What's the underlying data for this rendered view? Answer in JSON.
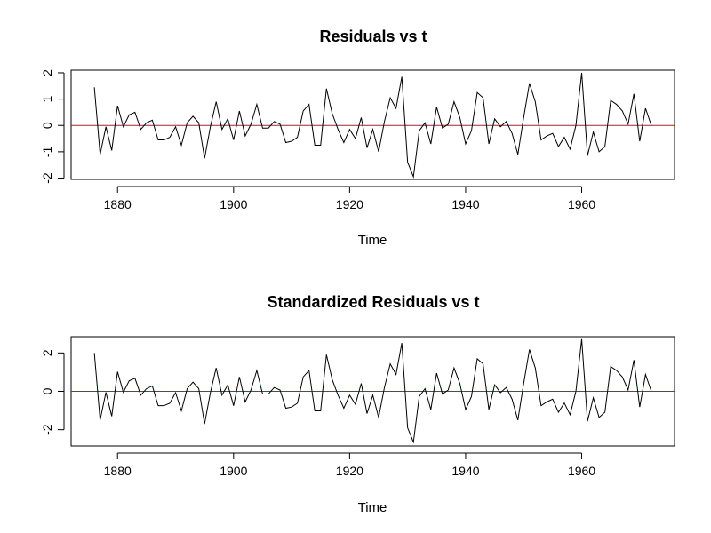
{
  "chart_data": [
    {
      "type": "line",
      "title": "Residuals vs t",
      "xlabel": "Time",
      "ylabel": "",
      "xlim": [
        1872,
        1976
      ],
      "ylim": [
        -2.05,
        2.1
      ],
      "x_ticks": [
        1880,
        1900,
        1920,
        1940,
        1960
      ],
      "y_ticks": [
        -2,
        -1,
        0,
        1,
        2
      ],
      "reference_line": {
        "y": 0,
        "color": "#ff0000"
      },
      "grid": false,
      "x_start": 1876,
      "series": [
        {
          "color": "#000000",
          "values": [
            1.45,
            -1.1,
            -0.05,
            -0.95,
            0.75,
            -0.05,
            0.4,
            0.5,
            -0.15,
            0.1,
            0.2,
            -0.55,
            -0.55,
            -0.45,
            -0.05,
            -0.75,
            0.1,
            0.35,
            0.1,
            -1.25,
            -0.05,
            0.9,
            -0.15,
            0.25,
            -0.55,
            0.55,
            -0.4,
            0.05,
            0.8,
            -0.1,
            -0.1,
            0.15,
            0.05,
            -0.65,
            -0.6,
            -0.45,
            0.55,
            0.8,
            -0.75,
            -0.75,
            1.4,
            0.45,
            -0.15,
            -0.65,
            -0.15,
            -0.5,
            0.3,
            -0.85,
            -0.15,
            -1.0,
            0.15,
            1.05,
            0.65,
            1.85,
            -1.4,
            -1.95,
            -0.2,
            0.1,
            -0.7,
            0.7,
            -0.1,
            0.05,
            0.9,
            0.3,
            -0.7,
            -0.2,
            1.25,
            1.05,
            -0.7,
            0.25,
            -0.05,
            0.15,
            -0.3,
            -1.1,
            0.3,
            1.6,
            0.9,
            -0.55,
            -0.4,
            -0.3,
            -0.8,
            -0.45,
            -0.9,
            0.0,
            2.0,
            -1.15,
            -0.25,
            -1.0,
            -0.8,
            0.95,
            0.8,
            0.55,
            0.05,
            1.2,
            -0.6,
            0.65,
            0.0
          ]
        }
      ]
    },
    {
      "type": "line",
      "title": "Standardized Residuals vs t",
      "xlabel": "Time",
      "ylabel": "",
      "xlim": [
        1872,
        1976
      ],
      "ylim": [
        -2.85,
        2.85
      ],
      "x_ticks": [
        1880,
        1900,
        1920,
        1940,
        1960
      ],
      "y_ticks": [
        -2,
        0,
        2
      ],
      "reference_line": {
        "y": 0,
        "color": "#ff0000"
      },
      "grid": false,
      "x_start": 1876,
      "series": [
        {
          "color": "#000000",
          "values": [
            2.0,
            -1.5,
            -0.05,
            -1.3,
            1.02,
            -0.05,
            0.55,
            0.68,
            -0.2,
            0.14,
            0.28,
            -0.75,
            -0.75,
            -0.62,
            -0.07,
            -1.02,
            0.14,
            0.48,
            0.14,
            -1.7,
            -0.07,
            1.22,
            -0.2,
            0.34,
            -0.75,
            0.75,
            -0.55,
            0.07,
            1.09,
            -0.14,
            -0.14,
            0.2,
            0.07,
            -0.88,
            -0.82,
            -0.62,
            0.75,
            1.09,
            -1.02,
            -1.02,
            1.91,
            0.61,
            -0.2,
            -0.88,
            -0.2,
            -0.68,
            0.41,
            -1.16,
            -0.2,
            -1.36,
            0.2,
            1.43,
            0.88,
            2.52,
            -1.9,
            -2.65,
            -0.27,
            0.14,
            -0.95,
            0.95,
            -0.14,
            0.07,
            1.22,
            0.41,
            -0.95,
            -0.27,
            1.7,
            1.43,
            -0.95,
            0.34,
            -0.07,
            0.2,
            -0.41,
            -1.5,
            0.41,
            2.18,
            1.22,
            -0.75,
            -0.55,
            -0.41,
            -1.09,
            -0.61,
            -1.22,
            0.0,
            2.72,
            -1.56,
            -0.34,
            -1.36,
            -1.09,
            1.29,
            1.09,
            0.75,
            0.07,
            1.63,
            -0.82,
            0.88,
            0.0
          ]
        }
      ]
    }
  ]
}
